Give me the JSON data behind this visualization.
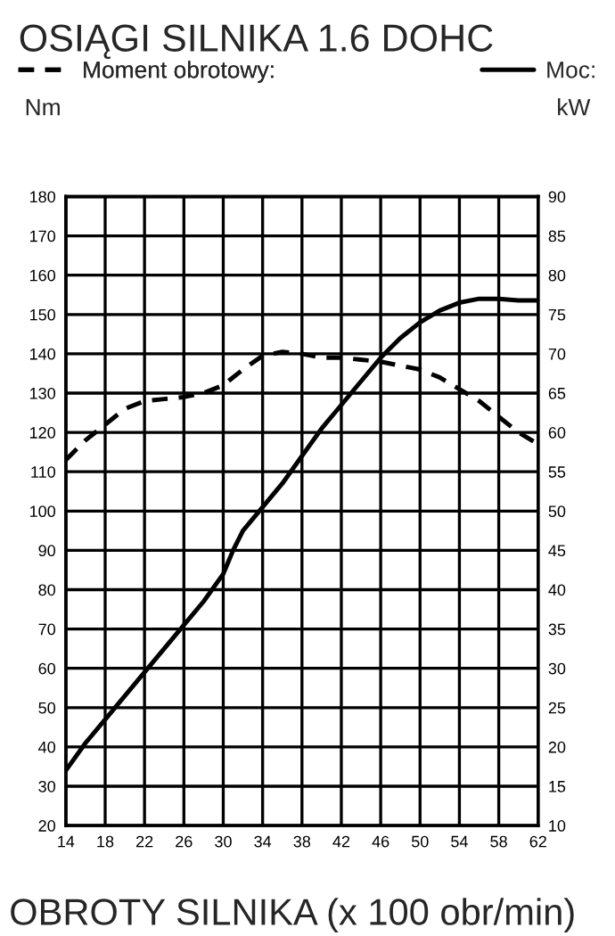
{
  "chart_data": {
    "type": "line",
    "title": "OSIĄGI SILNIKA 1.6 DOHC",
    "xlabel": "OBROTY SILNIKA (x 100 obr/min)",
    "ylabel": "Nm",
    "y2label": "kW",
    "x": [
      14,
      16,
      18,
      20,
      22,
      24,
      26,
      28,
      30,
      32,
      34,
      36,
      38,
      40,
      42,
      44,
      46,
      48,
      50,
      52,
      54,
      56,
      58,
      60,
      62
    ],
    "series": [
      {
        "name": "Moment obrotowy:",
        "color": "#000000",
        "line_style": "dashed",
        "values": [
          113,
          118,
          122,
          126,
          128,
          128.5,
          129,
          130,
          132,
          136,
          139.5,
          140.5,
          140,
          139,
          139,
          138.5,
          138,
          137,
          136,
          134,
          131,
          128,
          124,
          120,
          117
        ]
      },
      {
        "name": "Moc:",
        "color": "#000000",
        "line_style": "solid",
        "axis": "y2",
        "x": [
          14,
          16,
          18,
          20,
          22,
          24,
          26,
          28,
          30,
          31,
          32,
          34,
          36,
          38,
          40,
          42,
          44,
          46,
          48,
          50,
          52,
          54,
          56,
          58,
          60,
          62
        ],
        "values": [
          17,
          20.5,
          23.5,
          26.5,
          29.5,
          32.5,
          35.5,
          38.5,
          42,
          45,
          47.5,
          50.5,
          53.5,
          57,
          60.5,
          63.5,
          66.5,
          69.5,
          72,
          74,
          75.5,
          76.5,
          77,
          77,
          76.8,
          76.8
        ]
      }
    ],
    "xlim": [
      14,
      62
    ],
    "xticks": [
      14,
      18,
      22,
      26,
      30,
      34,
      38,
      42,
      46,
      50,
      54,
      58,
      62
    ],
    "ylim": [
      20,
      180
    ],
    "yticks": [
      20,
      30,
      40,
      50,
      60,
      70,
      80,
      90,
      100,
      110,
      120,
      130,
      140,
      150,
      160,
      170,
      180
    ],
    "y2lim": [
      10,
      90
    ],
    "y2ticks": [
      10,
      15,
      20,
      25,
      30,
      35,
      40,
      45,
      50,
      55,
      60,
      65,
      70,
      75,
      80,
      85,
      90
    ],
    "grid": true,
    "legend": "top",
    "marker": "none"
  }
}
